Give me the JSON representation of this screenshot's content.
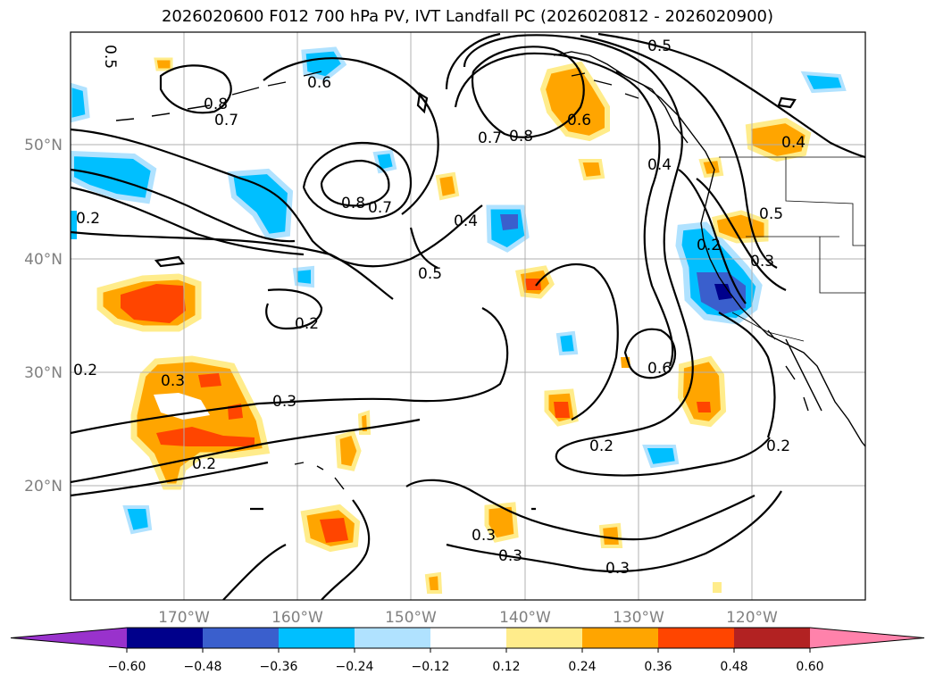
{
  "title": "2026020600 F012 700 hPa PV, IVT Landfall PC (2026020812 - 2026020900)",
  "map": {
    "lon_labels": [
      "170°W",
      "160°W",
      "150°W",
      "140°W",
      "130°W",
      "120°W"
    ],
    "lat_labels": [
      "50°N",
      "40°N",
      "30°N",
      "20°N"
    ],
    "contour_labels": [
      "0.5",
      "0.6",
      "0.8",
      "0.7",
      "0.8",
      "0.7",
      "0.4",
      "0.5",
      "0.7",
      "0.8",
      "0.6",
      "0.4",
      "0.5",
      "0.2",
      "0.3",
      "0.4",
      "0.5",
      "0.2",
      "0.2",
      "0.3",
      "0.3",
      "0.2",
      "0.2",
      "0.6",
      "0.2",
      "0.3",
      "0.3",
      "0.3",
      "0.2"
    ]
  },
  "colorbar": {
    "ticks": [
      "−0.60",
      "−0.48",
      "−0.36",
      "−0.24",
      "−0.12",
      "0.12",
      "0.24",
      "0.36",
      "0.48",
      "0.60"
    ],
    "colors": {
      "under": "#9932cc",
      "bins": [
        "#00008b",
        "#3a5fcd",
        "#00bfff",
        "#b0e2ff",
        "#ffffff",
        "#ffec8b",
        "#ffa500",
        "#ff4500",
        "#b22222"
      ],
      "over": "#ff82ab"
    }
  }
}
